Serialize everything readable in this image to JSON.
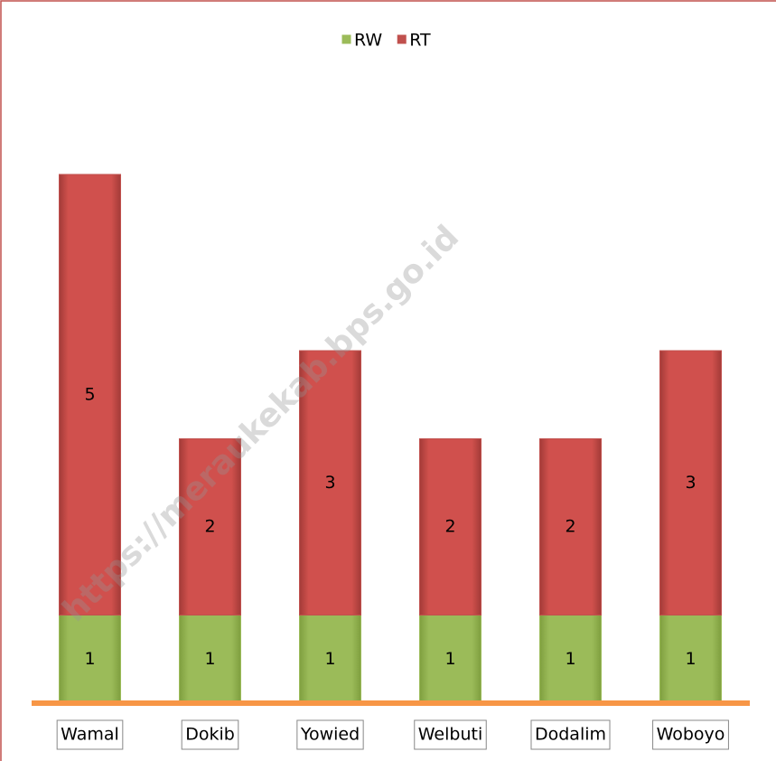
{
  "chart_data": {
    "type": "stacked-bar",
    "categories": [
      "Wamal",
      "Dokib",
      "Yowied",
      "Welbuti",
      "Dodalim",
      "Woboyo"
    ],
    "series": [
      {
        "name": "RW",
        "color": "#9bbb59",
        "values": [
          1,
          1,
          1,
          1,
          1,
          1
        ]
      },
      {
        "name": "RT",
        "color": "#c0504d",
        "values": [
          5,
          2,
          3,
          2,
          2,
          3
        ]
      }
    ],
    "ylim": [
      0,
      6
    ],
    "legend": "top",
    "watermark": "https://meraukekab.bps.go.id"
  }
}
